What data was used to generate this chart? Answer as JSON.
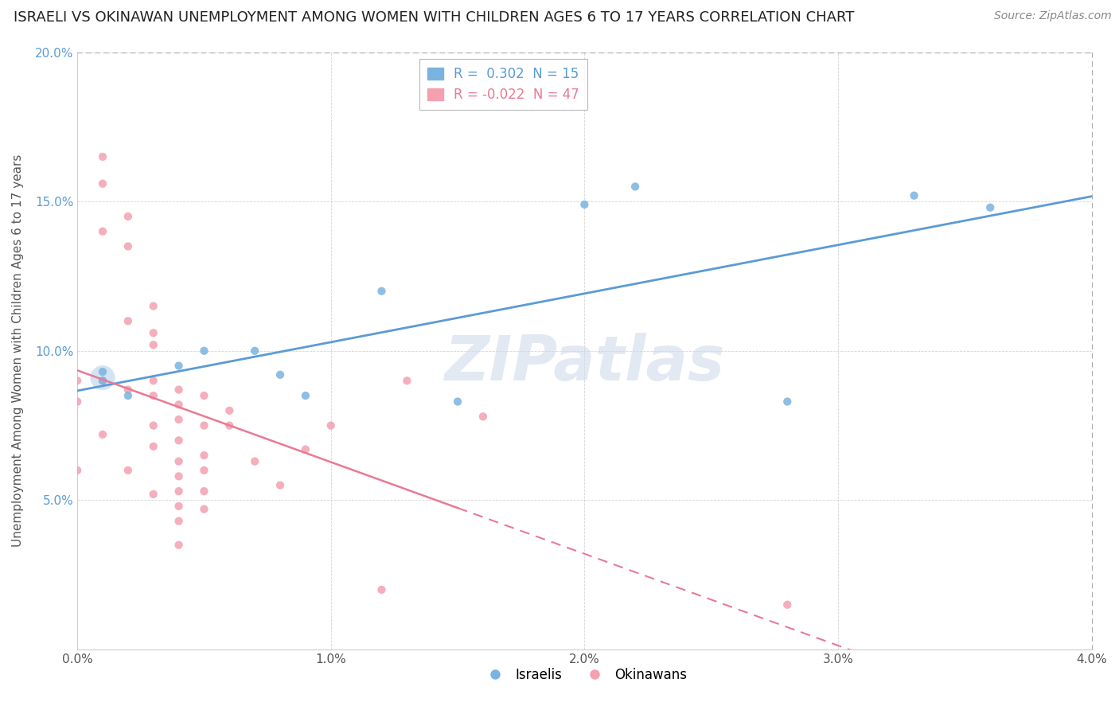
{
  "title": "ISRAELI VS OKINAWAN UNEMPLOYMENT AMONG WOMEN WITH CHILDREN AGES 6 TO 17 YEARS CORRELATION CHART",
  "source": "Source: ZipAtlas.com",
  "ylabel": "Unemployment Among Women with Children Ages 6 to 17 years",
  "xlim": [
    0.0,
    0.04
  ],
  "ylim": [
    0.0,
    0.2
  ],
  "xtick_labels": [
    "0.0%",
    "1.0%",
    "2.0%",
    "3.0%",
    "4.0%"
  ],
  "xtick_values": [
    0.0,
    0.01,
    0.02,
    0.03,
    0.04
  ],
  "ytick_labels": [
    "5.0%",
    "10.0%",
    "15.0%",
    "20.0%"
  ],
  "ytick_values": [
    0.05,
    0.1,
    0.15,
    0.2
  ],
  "israeli_R": "0.302",
  "israeli_N": "15",
  "okinawan_R": "-0.022",
  "okinawan_N": "47",
  "israeli_color": "#7ab3e0",
  "okinawan_color": "#f4a0b0",
  "israeli_line_color": "#5b9bd5",
  "okinawan_line_color": "#e87a94",
  "watermark": "ZIPatlas",
  "background_color": "#ffffff",
  "israeli_x": [
    0.001,
    0.001,
    0.002,
    0.004,
    0.005,
    0.007,
    0.008,
    0.009,
    0.012,
    0.015,
    0.02,
    0.022,
    0.028,
    0.033,
    0.036
  ],
  "israeli_y": [
    0.09,
    0.093,
    0.085,
    0.095,
    0.1,
    0.1,
    0.092,
    0.085,
    0.12,
    0.083,
    0.149,
    0.155,
    0.083,
    0.152,
    0.148
  ],
  "okinawan_x": [
    0.0,
    0.0,
    0.0,
    0.001,
    0.001,
    0.001,
    0.001,
    0.001,
    0.002,
    0.002,
    0.002,
    0.002,
    0.002,
    0.003,
    0.003,
    0.003,
    0.003,
    0.003,
    0.003,
    0.003,
    0.003,
    0.004,
    0.004,
    0.004,
    0.004,
    0.004,
    0.004,
    0.004,
    0.004,
    0.004,
    0.004,
    0.005,
    0.005,
    0.005,
    0.005,
    0.005,
    0.005,
    0.006,
    0.006,
    0.007,
    0.008,
    0.009,
    0.01,
    0.012,
    0.013,
    0.016,
    0.028
  ],
  "okinawan_y": [
    0.09,
    0.083,
    0.06,
    0.165,
    0.156,
    0.14,
    0.09,
    0.072,
    0.145,
    0.135,
    0.11,
    0.087,
    0.06,
    0.115,
    0.106,
    0.102,
    0.09,
    0.085,
    0.075,
    0.068,
    0.052,
    0.087,
    0.082,
    0.077,
    0.07,
    0.063,
    0.058,
    0.053,
    0.048,
    0.043,
    0.035,
    0.085,
    0.075,
    0.065,
    0.06,
    0.053,
    0.047,
    0.08,
    0.075,
    0.063,
    0.055,
    0.067,
    0.075,
    0.02,
    0.09,
    0.078,
    0.015
  ]
}
